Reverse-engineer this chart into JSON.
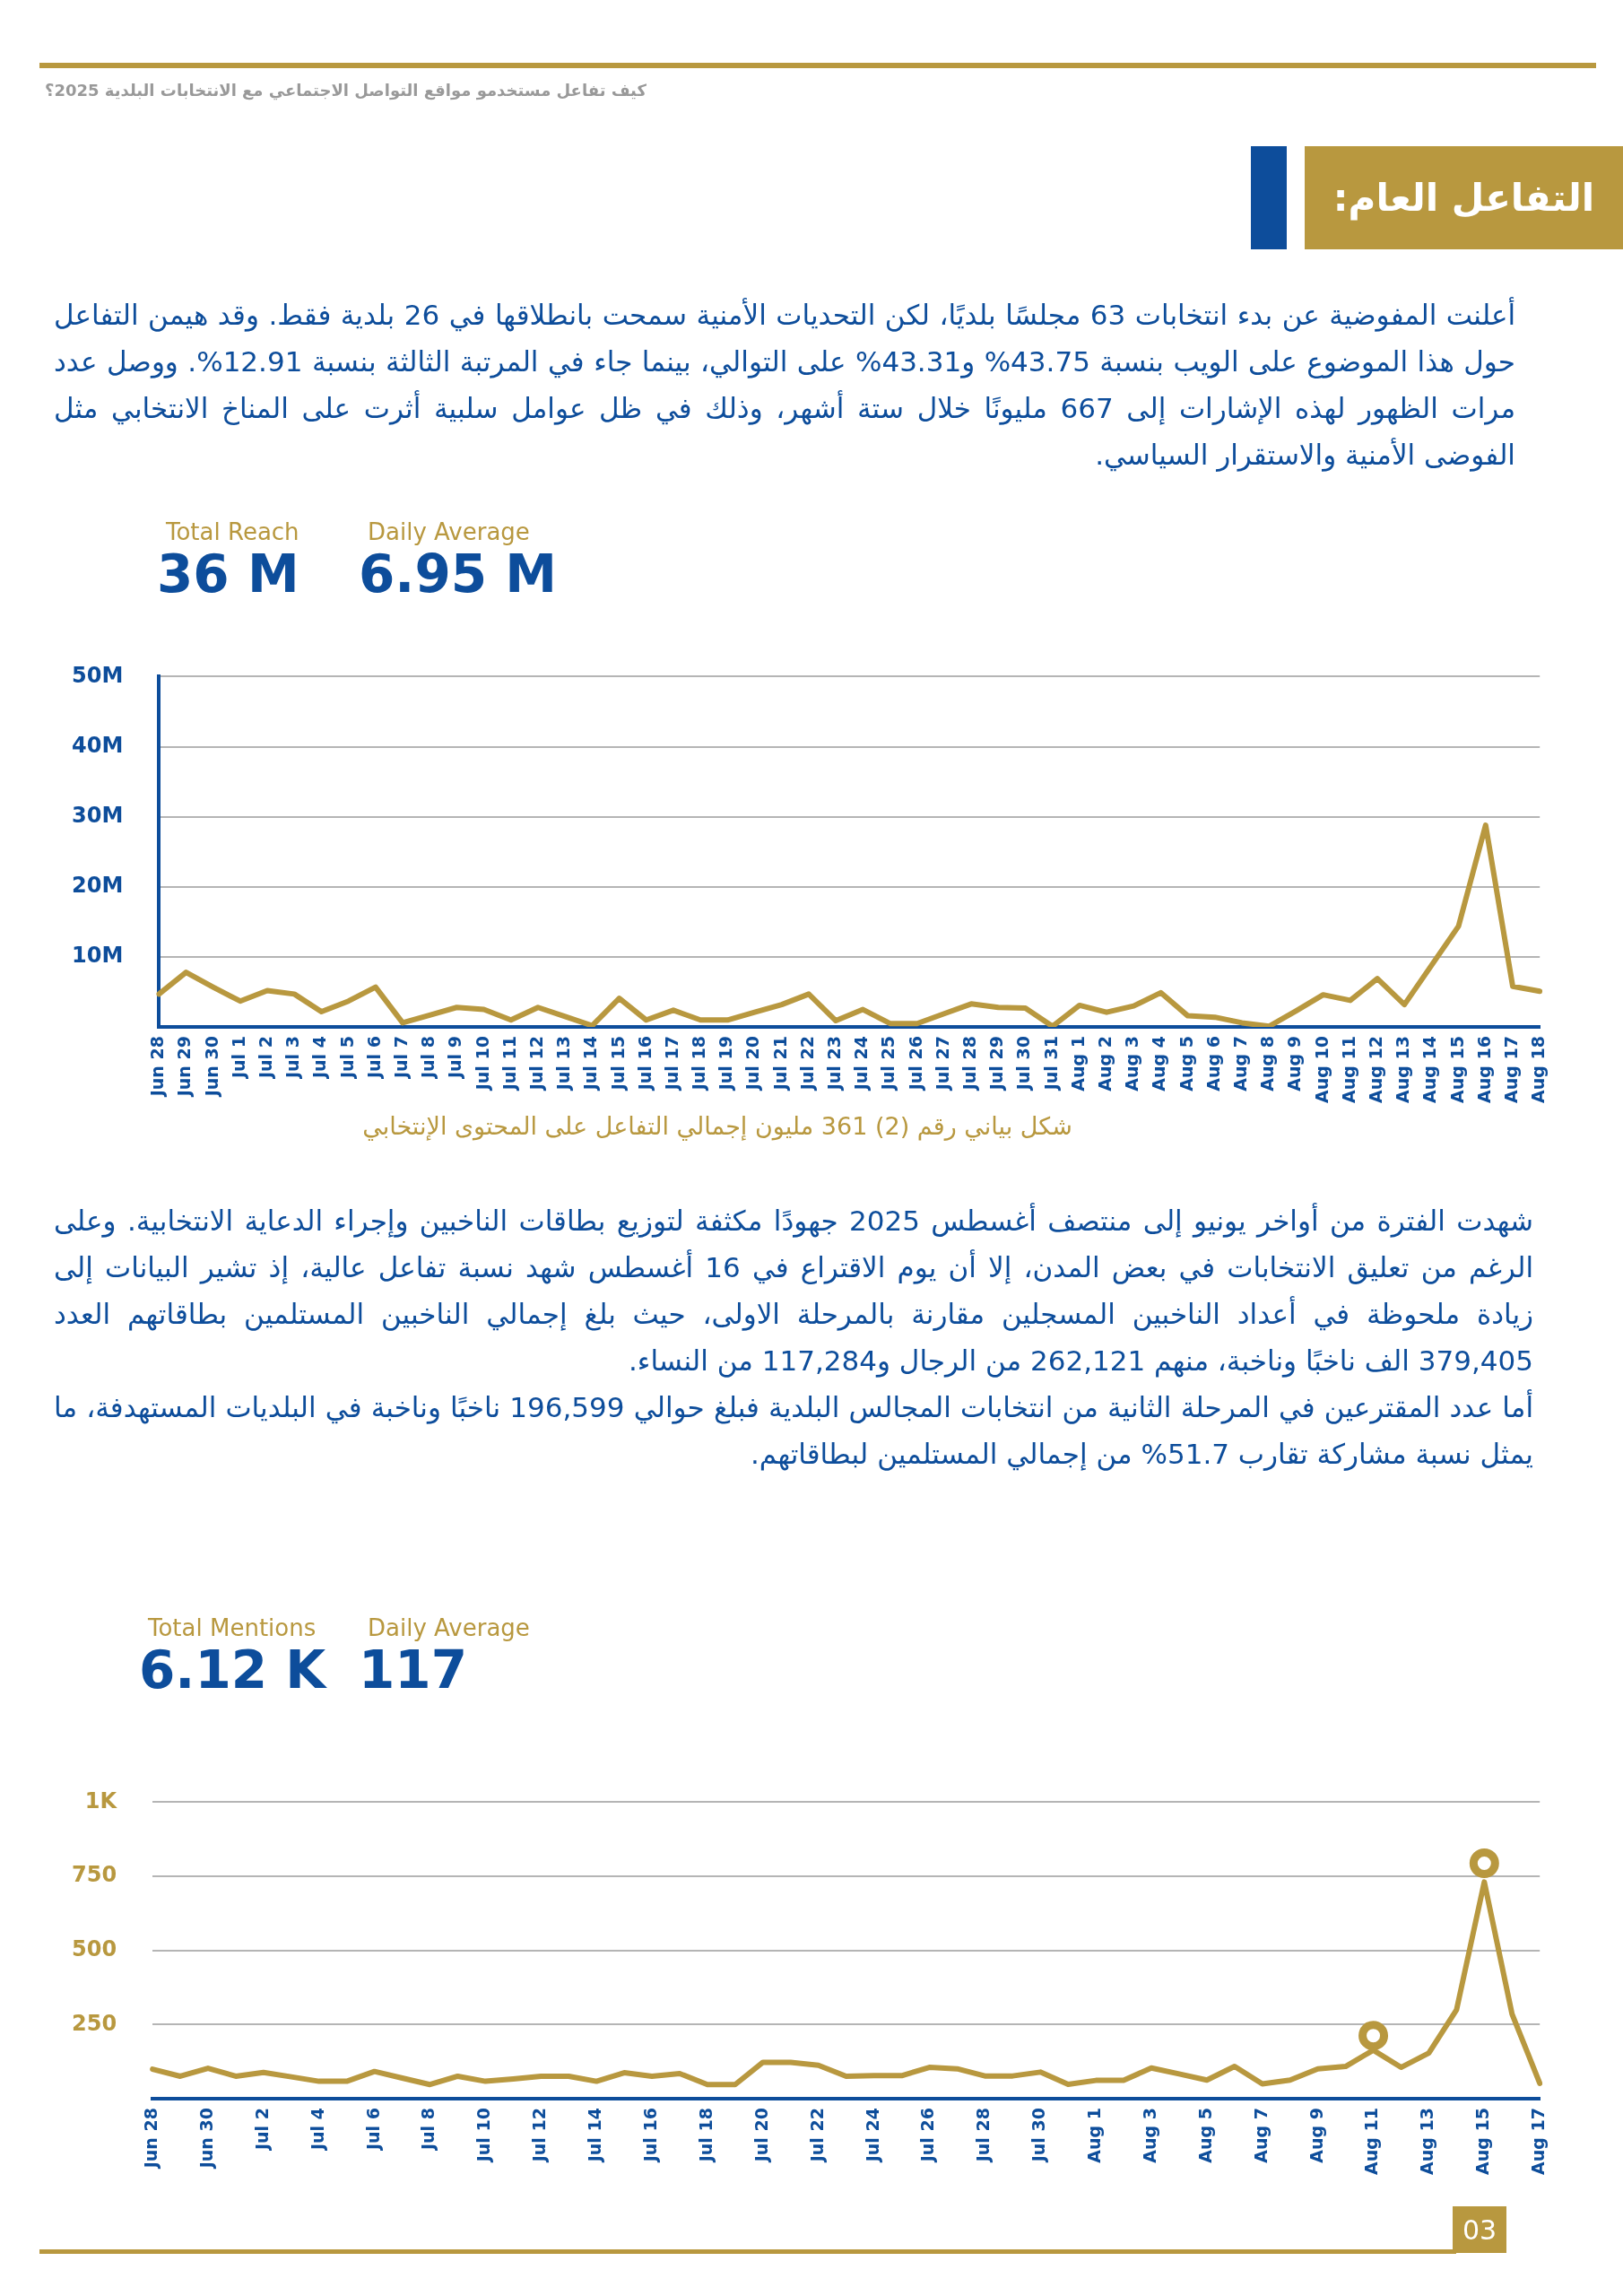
{
  "chart_data": [
    {
      "type": "line",
      "title": "التفاعل العام:",
      "annotations": [
        "كيف تفاعل مستخدمو مواقع التواصل الاجتماعي مع الانتخابات البلدية 2025؟",
        "أعلنت المفوضية عن بدء انتخابات 63 مجلسًا بلديًا، لكن التحديات الأمنية سمحت بانطلاقها في 26 بلدية فقط. وقد هيمن التفاعل حول هذا الموضوع على الويب بنسبة 43.75% و43.31% على التوالي، بينما جاء في المرتبة الثالثة بنسبة 12.91%. ووصل عدد مرات الظهور لهذه الإشارات إلى 667 مليونًا خلال ستة أشهر، وذلك في ظل عوامل سلبية أثرت على المناخ الانتخابي مثل الفوضى الأمنية والاستقرار السياسي.",
        "Total Reach",
        "36 M",
        "Daily Average",
        "6.95 M",
        "شكل بياني رقم (2)  361 مليون إجمالي التفاعل على المحتوى الإنتخابي"
      ],
      "categories": [
        "Jun 28",
        "Jun 29",
        "Jun 30",
        "Jul 1",
        "Jul 2",
        "Jul 3",
        "Jul 4",
        "Jul 5",
        "Jul 6",
        "Jul 7",
        "Jul 8",
        "Jul 9",
        "Jul 10",
        "Jul 11",
        "Jul 12",
        "Jul 13",
        "Jul 14",
        "Jul 15",
        "Jul 16",
        "Jul 17",
        "Jul 18",
        "Jul 19",
        "Jul 20",
        "Jul 21",
        "Jul 22",
        "Jul 23",
        "Jul 24",
        "Jul 25",
        "Jul 26",
        "Jul 27",
        "Jul 28",
        "Jul 29",
        "Jul 30",
        "Jul 31",
        "Aug 1",
        "Aug 2",
        "Aug 3",
        "Aug 4",
        "Aug 5",
        "Aug 6",
        "Aug 7",
        "Aug 8",
        "Aug 9",
        "Aug 10",
        "Aug 11",
        "Aug 12",
        "Aug 13",
        "Aug 14",
        "Aug 15",
        "Aug 16",
        "Aug 17",
        "Aug 18"
      ],
      "values": [
        4.7,
        7.8,
        5.7,
        3.7,
        5.2,
        4.7,
        2.2,
        3.7,
        5.7,
        0.6,
        1.7,
        2.8,
        2.5,
        1.0,
        2.8,
        1.5,
        0.2,
        4.1,
        1.0,
        2.4,
        1.0,
        1.0,
        2.1,
        3.2,
        4.7,
        0.9,
        2.5,
        0.5,
        0.5,
        1.9,
        3.3,
        2.8,
        2.7,
        0.1,
        3.1,
        2.1,
        3.0,
        4.9,
        1.6,
        1.4,
        0.6,
        0.1,
        2.3,
        4.6,
        3.8,
        6.9,
        3.2,
        8.8,
        14.4,
        28.8,
        5.8,
        5.1
      ],
      "color": "#b8983f",
      "ylim": [
        0,
        50
      ],
      "yticks": [
        {
          "value": 10,
          "label": "10M"
        },
        {
          "value": 20,
          "label": "20M"
        },
        {
          "value": 30,
          "label": "30M"
        },
        {
          "value": 40,
          "label": "40M"
        },
        {
          "value": 50,
          "label": "50M"
        }
      ],
      "grid": "y",
      "legend": false
    },
    {
      "type": "line",
      "annotations": [
        "شهدت الفترة من أواخر يونيو إلى منتصف أغسطس 2025 جهودًا مكثفة لتوزيع بطاقات الناخبين وإجراء الدعاية الانتخابية. وعلى الرغم من تعليق الانتخابات في بعض المدن، إلا أن يوم الاقتراع في 16 أغسطس شهد نسبة تفاعل عالية، إذ تشير البيانات إلى زيادة ملحوظة في أعداد الناخبين المسجلين مقارنة بالمرحلة الاولى، حيث بلغ إجمالي الناخبين المستلمين بطاقاتهم العدد 379,405 الف ناخبًا وناخبة، منهم 262,121 من الرجال و117,284 من النساء.\nأما عدد المقترعين في المرحلة الثانية من انتخابات المجالس البلدية فبلغ حوالي 196,599 ناخبًا وناخبة في البلديات المستهدفة، ما يمثل نسبة مشاركة تقارب 51.7% من إجمالي المستلمين لبطاقاتهم.",
        "Total Mentions",
        "6.12 K",
        "Daily Average",
        "117",
        "03"
      ],
      "categories": [
        "Jun 28",
        null,
        "Jun 30",
        null,
        "Jul 2",
        null,
        "Jul 4",
        null,
        "Jul 6",
        null,
        "Jul 8",
        null,
        "Jul 10",
        null,
        "Jul 12",
        null,
        "Jul 14",
        null,
        "Jul 16",
        null,
        "Jul 18",
        null,
        "Jul 20",
        null,
        "Jul 22",
        null,
        "Jul 24",
        null,
        "Jul 26",
        null,
        "Jul 28",
        null,
        "Jul 30",
        null,
        "Aug 1",
        null,
        "Aug 3",
        null,
        "Aug 5",
        null,
        "Aug 7",
        null,
        "Aug 9",
        null,
        "Aug 11",
        null,
        "Aug 13",
        null,
        "Aug 15",
        null,
        "Aug 17"
      ],
      "series": [
        {
          "color": "#b8983f",
          "values": [
            100,
            76,
            103,
            76,
            89,
            74,
            59,
            59,
            92,
            70,
            48,
            76,
            59,
            67,
            76,
            76,
            59,
            88,
            76,
            85,
            48,
            48,
            123,
            123,
            113,
            76,
            78,
            78,
            106,
            101,
            77,
            77,
            90,
            49,
            62,
            62,
            104,
            84,
            63,
            109,
            50,
            63,
            101,
            109,
            164,
            106,
            154,
            300,
            731,
            286,
            52
          ]
        },
        {
          "type": "scatter",
          "color": "#b8983f",
          "marker": "circle",
          "x": [
            "Aug 11",
            "Aug 15"
          ],
          "values": [
            213,
            794
          ]
        }
      ],
      "ylim": [
        0,
        1000
      ],
      "yticks": [
        250,
        500,
        750,
        {
          "value": 1000,
          "label": "1K"
        }
      ],
      "grid": "y",
      "legend": false
    }
  ]
}
